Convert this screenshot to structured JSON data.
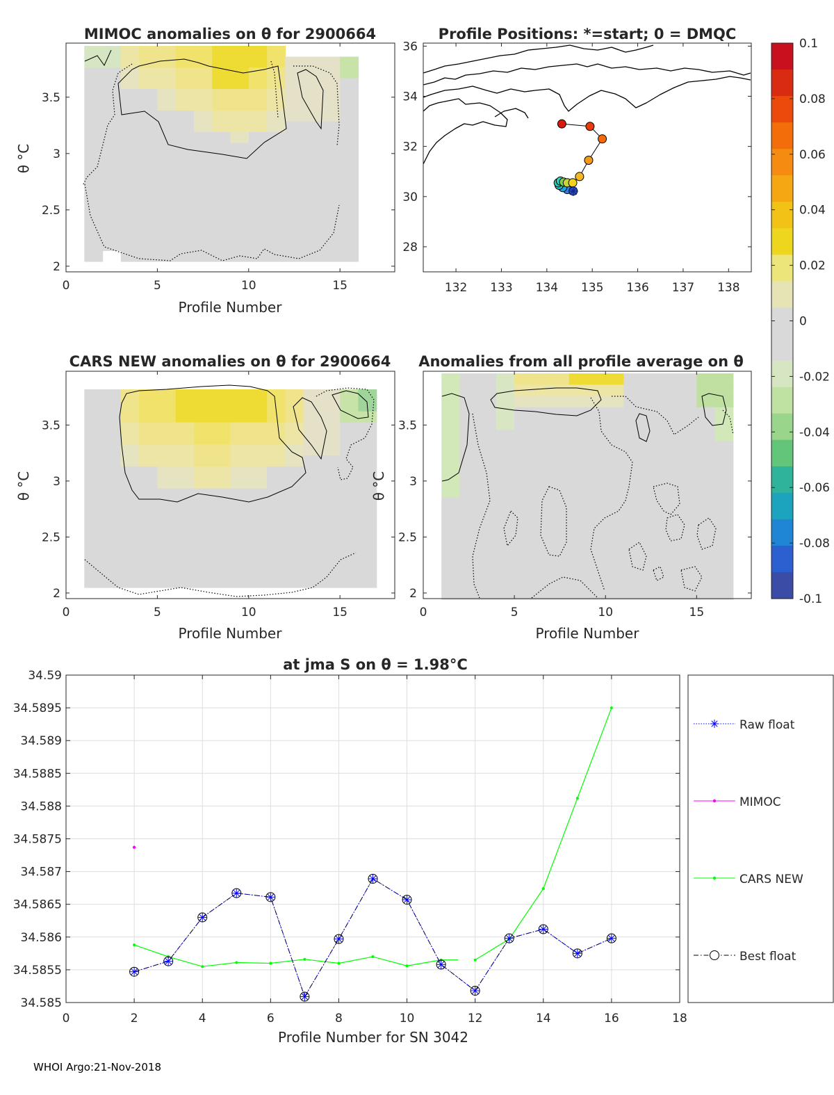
{
  "panels": {
    "mimoc": {
      "title": "MIMOC anomalies on θ  for 2900664",
      "xlabel": "Profile Number",
      "ylabel": "θ °C",
      "xticks": [
        "0",
        "5",
        "10",
        "15"
      ],
      "yticks": [
        "2",
        "2.5",
        "3",
        "3.5"
      ]
    },
    "positions": {
      "title": "Profile Positions: *=start; 0 = DMQC",
      "xticks": [
        "132",
        "133",
        "134",
        "135",
        "136",
        "137",
        "138"
      ],
      "yticks": [
        "28",
        "30",
        "32",
        "34",
        "36"
      ]
    },
    "cars": {
      "title": "CARS NEW anomalies on θ for 2900664",
      "xlabel": "Profile Number",
      "ylabel": "θ °C",
      "xticks": [
        "0",
        "5",
        "10",
        "15"
      ],
      "yticks": [
        "2",
        "2.5",
        "3",
        "3.5"
      ]
    },
    "allavg": {
      "title": "Anomalies from all profile average on θ",
      "xlabel": "Profile Number",
      "ylabel": "θ °C",
      "xticks": [
        "0",
        "5",
        "10",
        "15"
      ],
      "yticks": [
        "2",
        "2.5",
        "3",
        "3.5"
      ]
    }
  },
  "colorbar": {
    "ticks": [
      "0.1",
      "0.08",
      "0.06",
      "0.04",
      "0.02",
      "0",
      "-0.02",
      "-0.04",
      "-0.06",
      "-0.08",
      "-0.1"
    ]
  },
  "chart_data": {
    "type": "line",
    "title": "at jma S on θ = 1.98°C",
    "xlabel": "Profile Number for SN 3042",
    "ylabel": "",
    "xlim": [
      0,
      18
    ],
    "ylim": [
      34.585,
      34.59
    ],
    "xticks": [
      "0",
      "2",
      "4",
      "6",
      "8",
      "10",
      "12",
      "14",
      "16",
      "18"
    ],
    "yticks": [
      "34.585",
      "34.5855",
      "34.586",
      "34.5865",
      "34.587",
      "34.5875",
      "34.588",
      "34.5885",
      "34.589",
      "34.5895",
      "34.59"
    ],
    "series": [
      {
        "name": "Raw float",
        "color": "#0000ff",
        "points": [
          [
            2,
            34.58547
          ],
          [
            3,
            34.58563
          ],
          [
            4,
            34.5863
          ],
          [
            5,
            34.58667
          ],
          [
            6,
            34.58661
          ],
          [
            7,
            34.58509
          ],
          [
            8,
            34.58597
          ],
          [
            9,
            34.58689
          ],
          [
            10,
            34.58657
          ],
          [
            11,
            34.58558
          ],
          [
            12,
            34.58518
          ],
          [
            13,
            34.58598
          ],
          [
            14,
            34.58612
          ],
          [
            15,
            34.58575
          ],
          [
            16,
            34.58598
          ]
        ]
      },
      {
        "name": "MIMOC",
        "color": "#ff00ff",
        "points": [
          [
            2,
            34.58737
          ]
        ]
      },
      {
        "name": "CARS NEW",
        "color": "#00ff00",
        "segments": [
          [
            [
              2,
              34.58588
            ],
            [
              3,
              34.5857
            ],
            [
              4,
              34.58555
            ],
            [
              5,
              34.58561
            ],
            [
              6,
              34.5856
            ],
            [
              7,
              34.58566
            ],
            [
              8,
              34.5856
            ],
            [
              9,
              34.5857
            ],
            [
              10,
              34.58556
            ],
            [
              11,
              34.58565
            ],
            [
              11.5,
              34.58565
            ]
          ],
          [
            [
              12,
              34.58565
            ],
            [
              13,
              34.58597
            ],
            [
              14,
              34.58674
            ],
            [
              15,
              34.58812
            ],
            [
              16,
              34.5895
            ]
          ]
        ]
      },
      {
        "name": "Best float",
        "color": "#000000",
        "points": [
          [
            2,
            34.58547
          ],
          [
            3,
            34.58563
          ],
          [
            4,
            34.5863
          ],
          [
            5,
            34.58667
          ],
          [
            6,
            34.58661
          ],
          [
            7,
            34.58509
          ],
          [
            8,
            34.58597
          ],
          [
            9,
            34.58689
          ],
          [
            10,
            34.58657
          ],
          [
            11,
            34.58558
          ],
          [
            12,
            34.58518
          ],
          [
            13,
            34.58598
          ],
          [
            14,
            34.58612
          ],
          [
            15,
            34.58575
          ],
          [
            16,
            34.58598
          ]
        ]
      }
    ],
    "legend": [
      "Raw float",
      "MIMOC",
      "CARS NEW",
      "Best float"
    ],
    "legend_position": "outside-right",
    "grid": true
  },
  "map_data": {
    "profiles_lonlat": [
      [
        134.58,
        30.22
      ],
      [
        134.45,
        30.28
      ],
      [
        134.35,
        30.36
      ],
      [
        134.27,
        30.45
      ],
      [
        134.25,
        30.55
      ],
      [
        134.3,
        30.62
      ],
      [
        134.37,
        30.58
      ],
      [
        134.45,
        30.55
      ],
      [
        134.57,
        30.55
      ],
      [
        134.72,
        30.8
      ],
      [
        134.92,
        31.45
      ],
      [
        135.22,
        32.3
      ],
      [
        134.95,
        32.8
      ],
      [
        134.33,
        32.9
      ]
    ],
    "marker_colors": [
      "#2b5bd6",
      "#2f7fe0",
      "#21a6d9",
      "#1cc0c0",
      "#26c7a8",
      "#2fd0c0",
      "#7fd24a",
      "#c8d43a",
      "#f2d21a",
      "#f6b81e",
      "#f59a18",
      "#f36a0c",
      "#e83a0a",
      "#d91a0a"
    ]
  },
  "footer": "WHOI Argo:21-Nov-2018"
}
